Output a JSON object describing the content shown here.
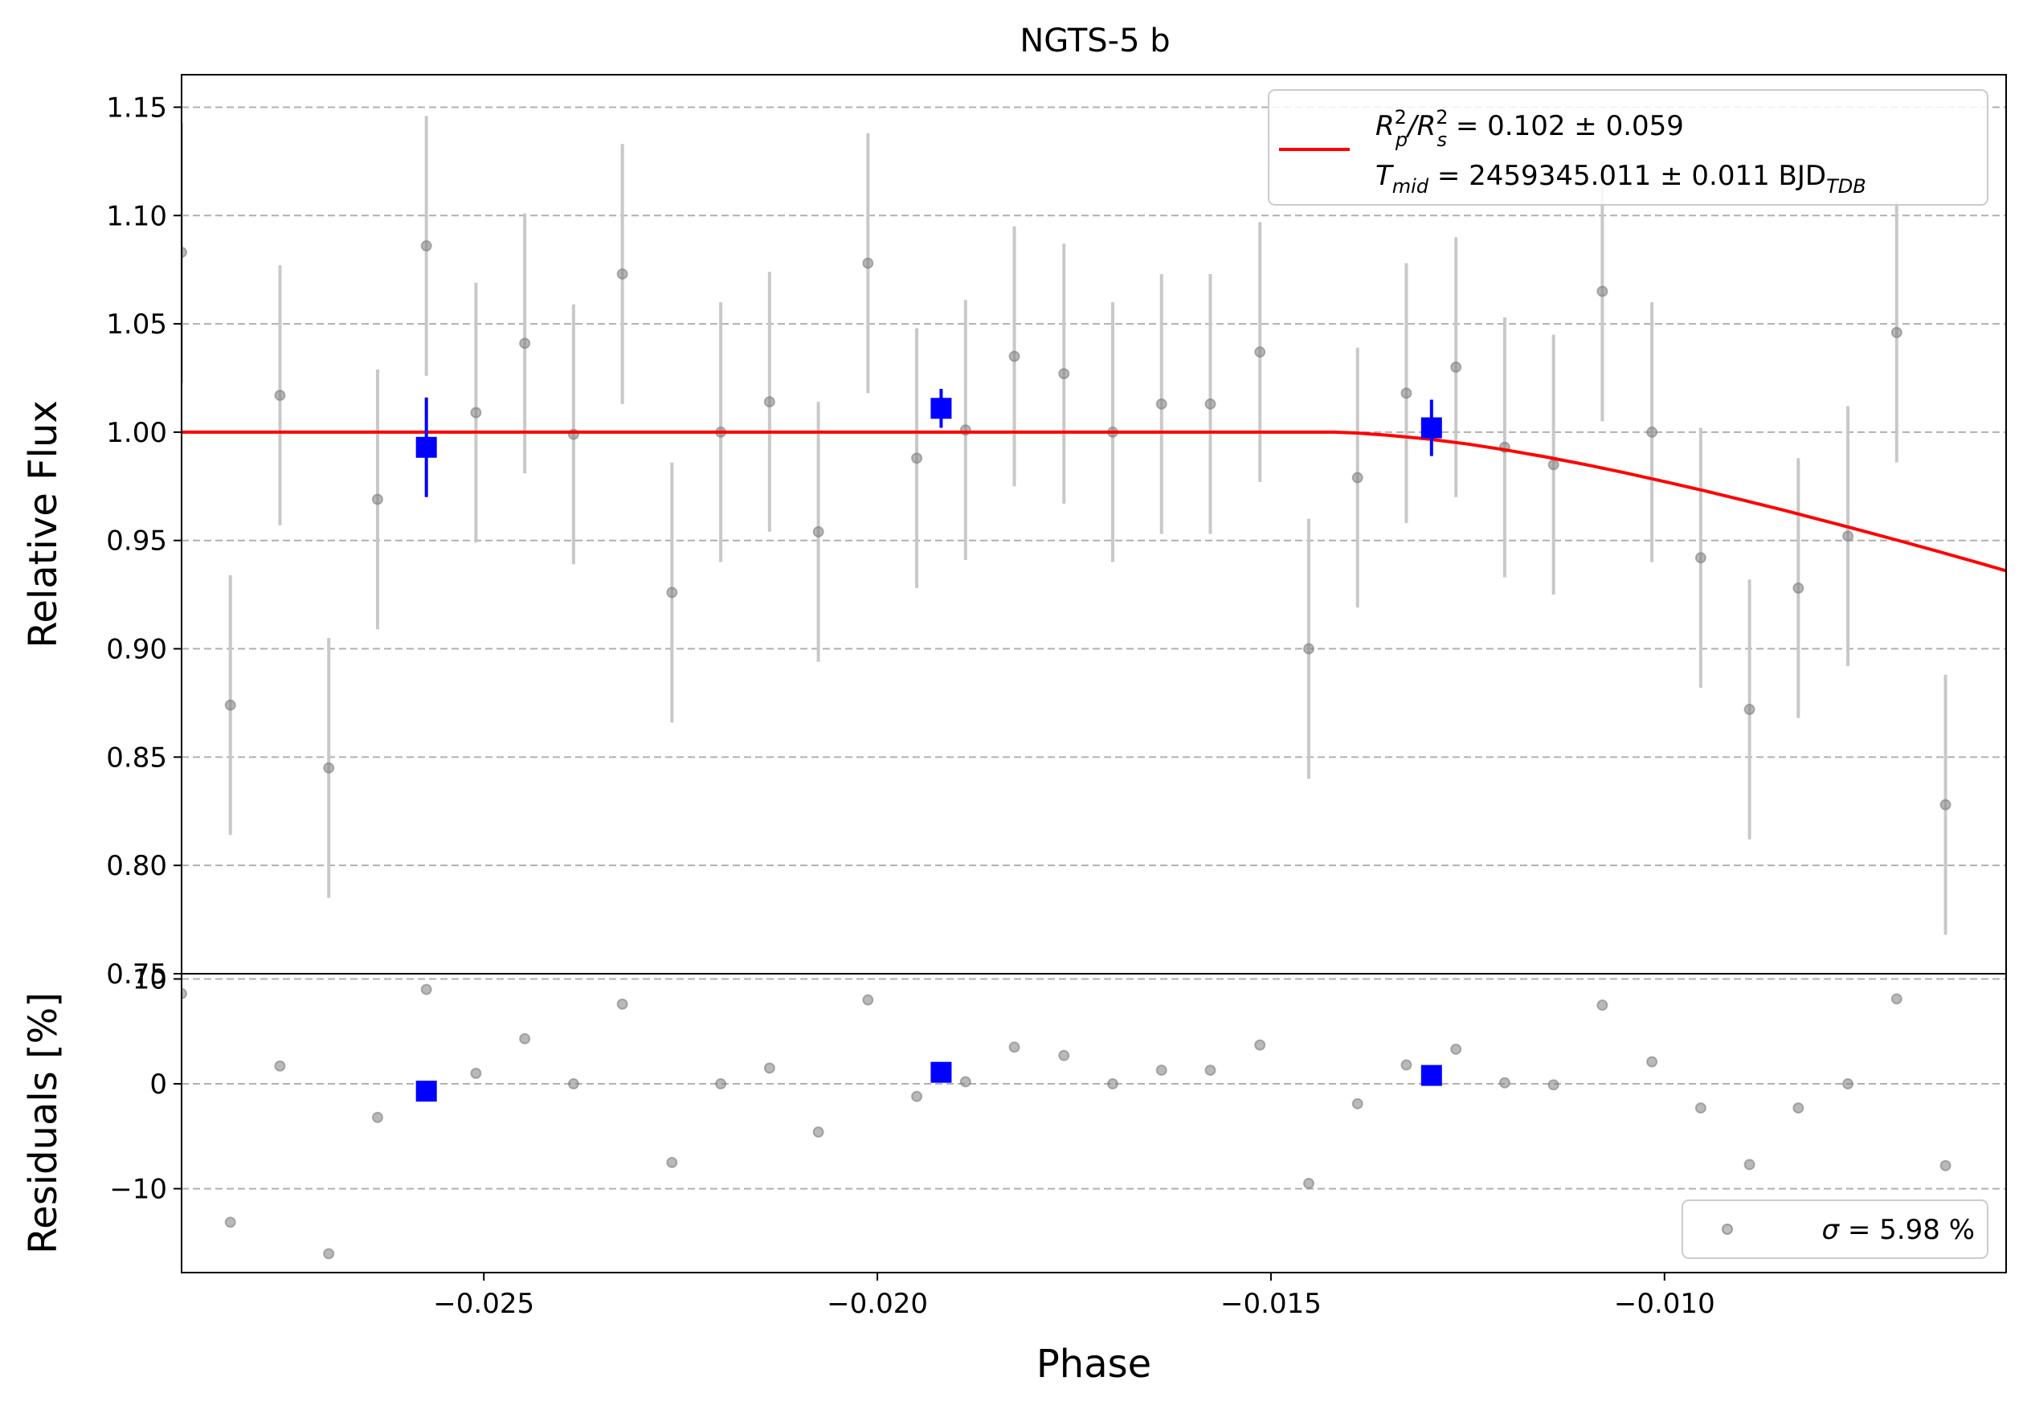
{
  "chart_data": {
    "type": "scatter",
    "title": "NGTS-5 b",
    "xlabel": "Phase",
    "xlim": [
      -0.02884,
      -0.00566
    ],
    "x_ticks": [
      {
        "value": -0.025,
        "label": "−0.025"
      },
      {
        "value": -0.02,
        "label": "−0.020"
      },
      {
        "value": -0.015,
        "label": "−0.015"
      },
      {
        "value": -0.01,
        "label": "−0.010"
      }
    ],
    "grid": true,
    "panels": {
      "flux": {
        "ylabel": "Relative Flux",
        "ylim": [
          0.75,
          1.165
        ],
        "y_ticks": [
          {
            "value": 1.15,
            "label": "1.15"
          },
          {
            "value": 1.1,
            "label": "1.10"
          },
          {
            "value": 1.05,
            "label": "1.05"
          },
          {
            "value": 1.0,
            "label": "1.00"
          },
          {
            "value": 0.95,
            "label": "0.95"
          },
          {
            "value": 0.9,
            "label": "0.90"
          },
          {
            "value": 0.85,
            "label": "0.85"
          },
          {
            "value": 0.8,
            "label": "0.80"
          },
          {
            "value": 0.75,
            "label": "0.75"
          }
        ]
      },
      "residuals": {
        "ylabel": "Residuals [%]",
        "ylim": [
          -18,
          10.5
        ],
        "y_ticks": [
          {
            "value": 10,
            "label": "10"
          },
          {
            "value": 0,
            "label": "0"
          },
          {
            "value": -10,
            "label": "−10"
          }
        ]
      }
    },
    "legend": {
      "flux_position": "upper right",
      "residuals_position": "lower right",
      "model_line_1": {
        "main": "R",
        "sup1": "2",
        "sub1": "p",
        "mid": "/R",
        "sup2": "2",
        "sub2": "s",
        "rest": " = 0.102 ± 0.059"
      },
      "model_line_2": {
        "main": "T",
        "sub1": "mid",
        "rest": " = 2459345.011 ± 0.011 BJD",
        "sub2": "TDB"
      },
      "residual_entry": {
        "sym": "σ",
        "rest": " = 5.98 %"
      }
    },
    "colors": {
      "raw": "#808080",
      "errorbar": "#c8c8c8",
      "binned": "#0000ff",
      "model": "#ff0000",
      "grid": "#b0b0b0"
    },
    "series": [
      {
        "kind": "raw",
        "x": [
          -0.02884,
          -0.02822,
          -0.02759,
          -0.02697,
          -0.02635,
          -0.02573,
          -0.0251,
          -0.02448,
          -0.02386,
          -0.02324,
          -0.02261,
          -0.02199,
          -0.02137,
          -0.02075,
          -0.02012,
          -0.0195,
          -0.01888,
          -0.01826,
          -0.01763,
          -0.01701,
          -0.01639,
          -0.01577,
          -0.01514,
          -0.01452,
          -0.0139,
          -0.01328,
          -0.01265,
          -0.01203,
          -0.01141,
          -0.01079,
          -0.01016,
          -0.00954,
          -0.00892,
          -0.0083,
          -0.00767,
          -0.00705,
          -0.00643
        ],
        "y": [
          1.083,
          0.874,
          1.017,
          0.845,
          0.969,
          1.086,
          1.009,
          1.041,
          0.999,
          1.073,
          0.926,
          1.0,
          1.014,
          0.954,
          1.078,
          0.988,
          1.001,
          1.035,
          1.027,
          1.0,
          1.013,
          1.013,
          1.037,
          0.9,
          0.979,
          1.018,
          1.03,
          0.993,
          0.985,
          1.065,
          1.0,
          0.942,
          0.872,
          0.928,
          0.952,
          1.046,
          0.828
        ],
        "yerr": 0.06,
        "residuals": [
          8.6,
          -13.2,
          1.7,
          -16.2,
          -3.2,
          9.0,
          1.0,
          4.3,
          0.0,
          7.6,
          -7.5,
          0.0,
          1.5,
          -4.6,
          8.0,
          -1.2,
          0.2,
          3.5,
          2.7,
          0.0,
          1.3,
          1.3,
          3.7,
          -9.5,
          -1.9,
          1.8,
          3.3,
          0.1,
          -0.1,
          7.5,
          2.1,
          -2.3,
          -7.7,
          -2.3,
          0.0,
          8.1,
          -7.8
        ]
      },
      {
        "kind": "binned",
        "x": [
          -0.02573,
          -0.01919,
          -0.01296
        ],
        "y": [
          0.993,
          1.011,
          1.002
        ],
        "yerr": [
          0.023,
          0.009,
          0.013
        ],
        "residuals": [
          -0.7,
          1.1,
          0.8
        ]
      },
      {
        "kind": "model",
        "x": [
          -0.02884,
          -0.0142,
          -0.0139,
          -0.0135,
          -0.013,
          -0.0125,
          -0.012,
          -0.0115,
          -0.011,
          -0.0105,
          -0.01,
          -0.0095,
          -0.009,
          -0.0085,
          -0.008,
          -0.0075,
          -0.007,
          -0.0065,
          -0.006,
          -0.00566
        ],
        "y": [
          1.0,
          1.0,
          0.9996,
          0.9985,
          0.9968,
          0.9945,
          0.9917,
          0.9885,
          0.985,
          0.9812,
          0.9772,
          0.973,
          0.9686,
          0.9641,
          0.9594,
          0.9546,
          0.9497,
          0.9447,
          0.9396,
          0.936
        ]
      }
    ]
  }
}
